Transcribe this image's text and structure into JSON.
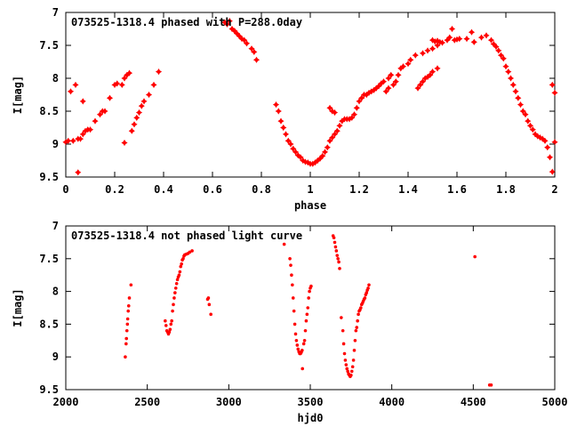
{
  "chart_data": [
    {
      "type": "scatter",
      "title": "073525-1318.4 phased with P=288.0day",
      "xlabel": "phase",
      "ylabel": "I[mag]",
      "xlim": [
        0,
        2
      ],
      "ylim": [
        7,
        9.5
      ],
      "y_inverted": true,
      "x_ticks": [
        "0",
        "0.2",
        "0.4",
        "0.6",
        "0.8",
        "1",
        "1.2",
        "1.4",
        "1.6",
        "1.8",
        "2"
      ],
      "x_tick_values": [
        0,
        0.2,
        0.4,
        0.6,
        0.8,
        1.0,
        1.2,
        1.4,
        1.6,
        1.8,
        2.0
      ],
      "y_ticks": [
        "7",
        "7.5",
        "8",
        "8.5",
        "9",
        "9.5"
      ],
      "y_tick_values": [
        7,
        7.5,
        8,
        8.5,
        9,
        9.5
      ],
      "marker_color": "#ff0000",
      "marker": "star",
      "legend": "none",
      "grid": false,
      "points": [
        [
          0.0,
          8.97
        ],
        [
          0.01,
          8.95
        ],
        [
          0.02,
          8.2
        ],
        [
          0.03,
          8.95
        ],
        [
          0.04,
          8.1
        ],
        [
          0.05,
          9.43
        ],
        [
          0.05,
          8.92
        ],
        [
          0.06,
          8.92
        ],
        [
          0.07,
          8.35
        ],
        [
          0.07,
          8.85
        ],
        [
          0.08,
          8.8
        ],
        [
          0.09,
          8.78
        ],
        [
          0.1,
          8.78
        ],
        [
          0.12,
          8.65
        ],
        [
          0.14,
          8.55
        ],
        [
          0.15,
          8.5
        ],
        [
          0.16,
          8.5
        ],
        [
          0.18,
          8.3
        ],
        [
          0.2,
          8.1
        ],
        [
          0.21,
          8.08
        ],
        [
          0.23,
          8.1
        ],
        [
          0.24,
          8.0
        ],
        [
          0.24,
          8.98
        ],
        [
          0.25,
          7.95
        ],
        [
          0.26,
          7.92
        ],
        [
          0.27,
          8.8
        ],
        [
          0.28,
          8.7
        ],
        [
          0.29,
          8.6
        ],
        [
          0.3,
          8.52
        ],
        [
          0.31,
          8.42
        ],
        [
          0.32,
          8.35
        ],
        [
          0.34,
          8.25
        ],
        [
          0.36,
          8.1
        ],
        [
          0.38,
          7.9
        ],
        [
          0.65,
          7.15
        ],
        [
          0.66,
          7.18
        ],
        [
          0.67,
          7.13
        ],
        [
          0.68,
          7.25
        ],
        [
          0.69,
          7.28
        ],
        [
          0.7,
          7.32
        ],
        [
          0.71,
          7.36
        ],
        [
          0.72,
          7.4
        ],
        [
          0.73,
          7.42
        ],
        [
          0.74,
          7.47
        ],
        [
          0.76,
          7.55
        ],
        [
          0.77,
          7.6
        ],
        [
          0.78,
          7.72
        ],
        [
          0.86,
          8.4
        ],
        [
          0.87,
          8.5
        ],
        [
          0.88,
          8.65
        ],
        [
          0.89,
          8.75
        ],
        [
          0.9,
          8.85
        ],
        [
          0.91,
          8.95
        ],
        [
          0.92,
          9.0
        ],
        [
          0.93,
          9.07
        ],
        [
          0.94,
          9.12
        ],
        [
          0.95,
          9.17
        ],
        [
          0.96,
          9.2
        ],
        [
          0.97,
          9.25
        ],
        [
          0.98,
          9.27
        ],
        [
          0.99,
          9.28
        ],
        [
          1.0,
          9.3
        ],
        [
          1.01,
          9.3
        ],
        [
          1.02,
          9.28
        ],
        [
          1.03,
          9.25
        ],
        [
          1.04,
          9.22
        ],
        [
          1.05,
          9.18
        ],
        [
          1.06,
          9.12
        ],
        [
          1.07,
          9.05
        ],
        [
          1.08,
          8.95
        ],
        [
          1.08,
          8.45
        ],
        [
          1.09,
          8.9
        ],
        [
          1.09,
          8.5
        ],
        [
          1.1,
          8.85
        ],
        [
          1.1,
          8.52
        ],
        [
          1.11,
          8.8
        ],
        [
          1.12,
          8.72
        ],
        [
          1.13,
          8.65
        ],
        [
          1.14,
          8.62
        ],
        [
          1.15,
          8.62
        ],
        [
          1.16,
          8.62
        ],
        [
          1.17,
          8.6
        ],
        [
          1.18,
          8.55
        ],
        [
          1.19,
          8.45
        ],
        [
          1.2,
          8.35
        ],
        [
          1.21,
          8.3
        ],
        [
          1.22,
          8.25
        ],
        [
          1.23,
          8.25
        ],
        [
          1.24,
          8.22
        ],
        [
          1.25,
          8.2
        ],
        [
          1.26,
          8.18
        ],
        [
          1.27,
          8.15
        ],
        [
          1.28,
          8.12
        ],
        [
          1.29,
          8.08
        ],
        [
          1.3,
          8.05
        ],
        [
          1.32,
          8.0
        ],
        [
          1.33,
          7.95
        ],
        [
          1.31,
          8.2
        ],
        [
          1.32,
          8.15
        ],
        [
          1.34,
          8.1
        ],
        [
          1.35,
          8.05
        ],
        [
          1.36,
          7.95
        ],
        [
          1.37,
          7.85
        ],
        [
          1.38,
          7.82
        ],
        [
          1.4,
          7.78
        ],
        [
          1.41,
          7.72
        ],
        [
          1.43,
          7.65
        ],
        [
          1.44,
          8.15
        ],
        [
          1.45,
          8.1
        ],
        [
          1.46,
          8.05
        ],
        [
          1.47,
          8.0
        ],
        [
          1.48,
          7.98
        ],
        [
          1.49,
          7.95
        ],
        [
          1.5,
          7.9
        ],
        [
          1.52,
          7.85
        ],
        [
          1.46,
          7.62
        ],
        [
          1.48,
          7.58
        ],
        [
          1.5,
          7.55
        ],
        [
          1.52,
          7.5
        ],
        [
          1.5,
          7.42
        ],
        [
          1.51,
          7.44
        ],
        [
          1.52,
          7.43
        ],
        [
          1.53,
          7.45
        ],
        [
          1.54,
          7.46
        ],
        [
          1.56,
          7.42
        ],
        [
          1.57,
          7.38
        ],
        [
          1.58,
          7.25
        ],
        [
          1.59,
          7.42
        ],
        [
          1.6,
          7.41
        ],
        [
          1.61,
          7.4
        ],
        [
          1.64,
          7.4
        ],
        [
          1.66,
          7.3
        ],
        [
          1.67,
          7.45
        ],
        [
          1.7,
          7.38
        ],
        [
          1.72,
          7.35
        ],
        [
          1.74,
          7.42
        ],
        [
          1.75,
          7.48
        ],
        [
          1.76,
          7.52
        ],
        [
          1.77,
          7.58
        ],
        [
          1.78,
          7.65
        ],
        [
          1.79,
          7.7
        ],
        [
          1.8,
          7.82
        ],
        [
          1.81,
          7.9
        ],
        [
          1.82,
          8.0
        ],
        [
          1.83,
          8.1
        ],
        [
          1.84,
          8.2
        ],
        [
          1.85,
          8.3
        ],
        [
          1.86,
          8.4
        ],
        [
          1.87,
          8.5
        ],
        [
          1.88,
          8.55
        ],
        [
          1.89,
          8.65
        ],
        [
          1.9,
          8.72
        ],
        [
          1.91,
          8.78
        ],
        [
          1.92,
          8.85
        ],
        [
          1.93,
          8.88
        ],
        [
          1.94,
          8.9
        ],
        [
          1.95,
          8.92
        ],
        [
          1.96,
          8.95
        ],
        [
          1.97,
          9.05
        ],
        [
          1.98,
          9.2
        ],
        [
          1.99,
          9.42
        ],
        [
          1.99,
          8.1
        ],
        [
          2.0,
          8.22
        ],
        [
          2.0,
          8.97
        ]
      ]
    },
    {
      "type": "scatter",
      "title": "073525-1318.4 not phased light curve",
      "xlabel": "hjd0",
      "ylabel": "I[mag]",
      "xlim": [
        2000,
        5000
      ],
      "ylim": [
        7,
        9.5
      ],
      "y_inverted": true,
      "x_ticks": [
        "2000",
        "2500",
        "3000",
        "3500",
        "4000",
        "4500",
        "5000"
      ],
      "x_tick_values": [
        2000,
        2500,
        3000,
        3500,
        4000,
        4500,
        5000
      ],
      "y_ticks": [
        "7",
        "7.5",
        "8",
        "8.5",
        "9",
        "9.5"
      ],
      "y_tick_values": [
        7,
        7.5,
        8,
        8.5,
        9,
        9.5
      ],
      "marker_color": "#ff0000",
      "marker": "dot",
      "legend": "none",
      "grid": false,
      "points": [
        [
          2365,
          9.0
        ],
        [
          2370,
          8.8
        ],
        [
          2372,
          8.72
        ],
        [
          2375,
          8.6
        ],
        [
          2378,
          8.5
        ],
        [
          2380,
          8.42
        ],
        [
          2383,
          8.3
        ],
        [
          2386,
          8.22
        ],
        [
          2390,
          8.1
        ],
        [
          2400,
          7.9
        ],
        [
          2610,
          8.45
        ],
        [
          2615,
          8.52
        ],
        [
          2620,
          8.6
        ],
        [
          2625,
          8.62
        ],
        [
          2630,
          8.65
        ],
        [
          2635,
          8.62
        ],
        [
          2640,
          8.58
        ],
        [
          2645,
          8.5
        ],
        [
          2650,
          8.45
        ],
        [
          2655,
          8.3
        ],
        [
          2660,
          8.2
        ],
        [
          2665,
          8.1
        ],
        [
          2670,
          8.02
        ],
        [
          2675,
          7.95
        ],
        [
          2680,
          7.88
        ],
        [
          2685,
          7.82
        ],
        [
          2690,
          7.78
        ],
        [
          2695,
          7.75
        ],
        [
          2700,
          7.7
        ],
        [
          2705,
          7.62
        ],
        [
          2710,
          7.58
        ],
        [
          2715,
          7.52
        ],
        [
          2720,
          7.5
        ],
        [
          2725,
          7.46
        ],
        [
          2730,
          7.44
        ],
        [
          2740,
          7.43
        ],
        [
          2750,
          7.42
        ],
        [
          2760,
          7.4
        ],
        [
          2775,
          7.38
        ],
        [
          2870,
          8.12
        ],
        [
          2875,
          8.1
        ],
        [
          2880,
          8.2
        ],
        [
          2890,
          8.35
        ],
        [
          3340,
          7.28
        ],
        [
          3375,
          7.5
        ],
        [
          3380,
          7.6
        ],
        [
          3385,
          7.75
        ],
        [
          3390,
          7.9
        ],
        [
          3395,
          8.1
        ],
        [
          3400,
          8.3
        ],
        [
          3405,
          8.5
        ],
        [
          3410,
          8.65
        ],
        [
          3415,
          8.75
        ],
        [
          3420,
          8.82
        ],
        [
          3425,
          8.88
        ],
        [
          3430,
          8.92
        ],
        [
          3435,
          8.95
        ],
        [
          3440,
          8.95
        ],
        [
          3445,
          8.93
        ],
        [
          3450,
          8.9
        ],
        [
          3452,
          9.18
        ],
        [
          3460,
          8.8
        ],
        [
          3465,
          8.75
        ],
        [
          3470,
          8.6
        ],
        [
          3475,
          8.45
        ],
        [
          3480,
          8.35
        ],
        [
          3485,
          8.25
        ],
        [
          3490,
          8.1
        ],
        [
          3495,
          8.0
        ],
        [
          3500,
          7.95
        ],
        [
          3505,
          7.92
        ],
        [
          3640,
          7.15
        ],
        [
          3645,
          7.18
        ],
        [
          3650,
          7.25
        ],
        [
          3655,
          7.32
        ],
        [
          3660,
          7.38
        ],
        [
          3665,
          7.45
        ],
        [
          3670,
          7.5
        ],
        [
          3675,
          7.55
        ],
        [
          3680,
          7.65
        ],
        [
          3690,
          8.4
        ],
        [
          3700,
          8.6
        ],
        [
          3705,
          8.8
        ],
        [
          3710,
          8.95
        ],
        [
          3715,
          9.05
        ],
        [
          3720,
          9.12
        ],
        [
          3725,
          9.18
        ],
        [
          3730,
          9.22
        ],
        [
          3735,
          9.26
        ],
        [
          3740,
          9.28
        ],
        [
          3745,
          9.3
        ],
        [
          3750,
          9.28
        ],
        [
          3755,
          9.22
        ],
        [
          3760,
          9.15
        ],
        [
          3765,
          9.05
        ],
        [
          3770,
          8.9
        ],
        [
          3775,
          8.75
        ],
        [
          3780,
          8.6
        ],
        [
          3785,
          8.55
        ],
        [
          3790,
          8.45
        ],
        [
          3795,
          8.35
        ],
        [
          3800,
          8.3
        ],
        [
          3805,
          8.28
        ],
        [
          3810,
          8.25
        ],
        [
          3815,
          8.2
        ],
        [
          3820,
          8.18
        ],
        [
          3825,
          8.15
        ],
        [
          3830,
          8.12
        ],
        [
          3835,
          8.1
        ],
        [
          3840,
          8.05
        ],
        [
          3845,
          8.02
        ],
        [
          3850,
          7.98
        ],
        [
          3855,
          7.95
        ],
        [
          3860,
          7.9
        ],
        [
          4510,
          7.47
        ],
        [
          4600,
          9.43
        ],
        [
          4610,
          9.43
        ]
      ]
    }
  ]
}
